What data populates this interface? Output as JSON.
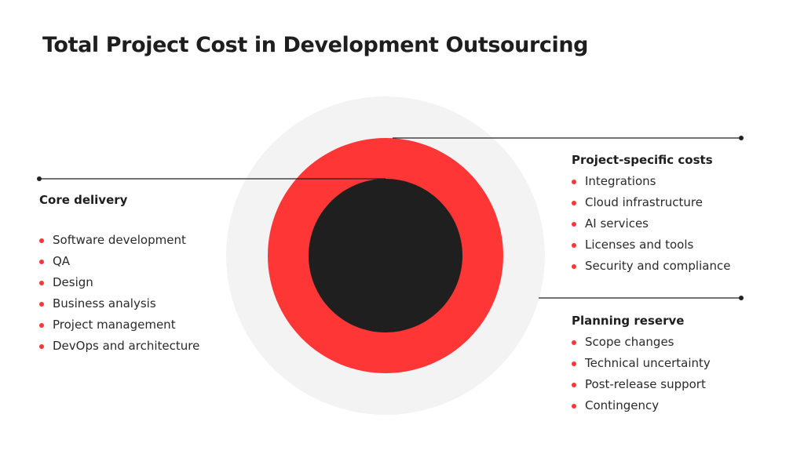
{
  "title": "Total Project Cost in Development Outsourcing",
  "colors": {
    "outer_ring": "#f3f3f3",
    "middle_ring": "#ff3636",
    "core": "#1f1f1f",
    "leader_line": "#222222",
    "bullet": "#ff3636"
  },
  "groups": {
    "core_delivery": {
      "heading": "Core delivery",
      "items": [
        "Software development",
        "QA",
        "Design",
        "Business analysis",
        "Project management",
        "DevOps and architecture"
      ]
    },
    "project_specific": {
      "heading": "Project-specific costs",
      "items": [
        "Integrations",
        "Cloud infrastructure",
        "AI services",
        "Licenses and tools",
        "Security and compliance"
      ]
    },
    "planning_reserve": {
      "heading": "Planning reserve",
      "items": [
        "Scope changes",
        "Technical uncertainty",
        "Post-release support",
        "Contingency"
      ]
    }
  }
}
